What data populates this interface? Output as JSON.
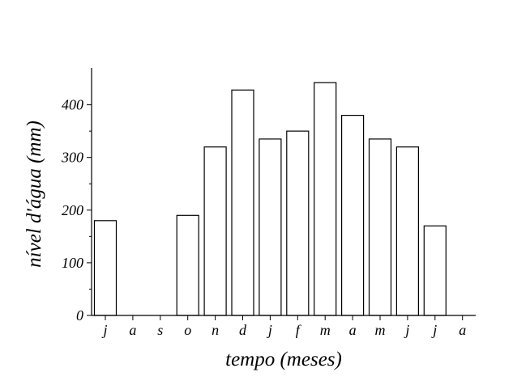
{
  "chart_data": {
    "type": "bar",
    "categories": [
      "j",
      "a",
      "s",
      "o",
      "n",
      "d",
      "j",
      "f",
      "m",
      "a",
      "m",
      "j",
      "j",
      "a"
    ],
    "values": [
      180,
      0,
      0,
      190,
      320,
      428,
      335,
      350,
      442,
      380,
      335,
      320,
      170,
      0
    ],
    "xlabel": "tempo (meses)",
    "ylabel": "nível d'água (mm)",
    "yticks": [
      "0",
      "100",
      "200",
      "300",
      "400"
    ],
    "ylim": [
      0,
      470
    ],
    "grid": false,
    "legend": "none",
    "colors": {
      "bar_fill": "#ffffff",
      "bar_stroke": "#000000"
    }
  }
}
